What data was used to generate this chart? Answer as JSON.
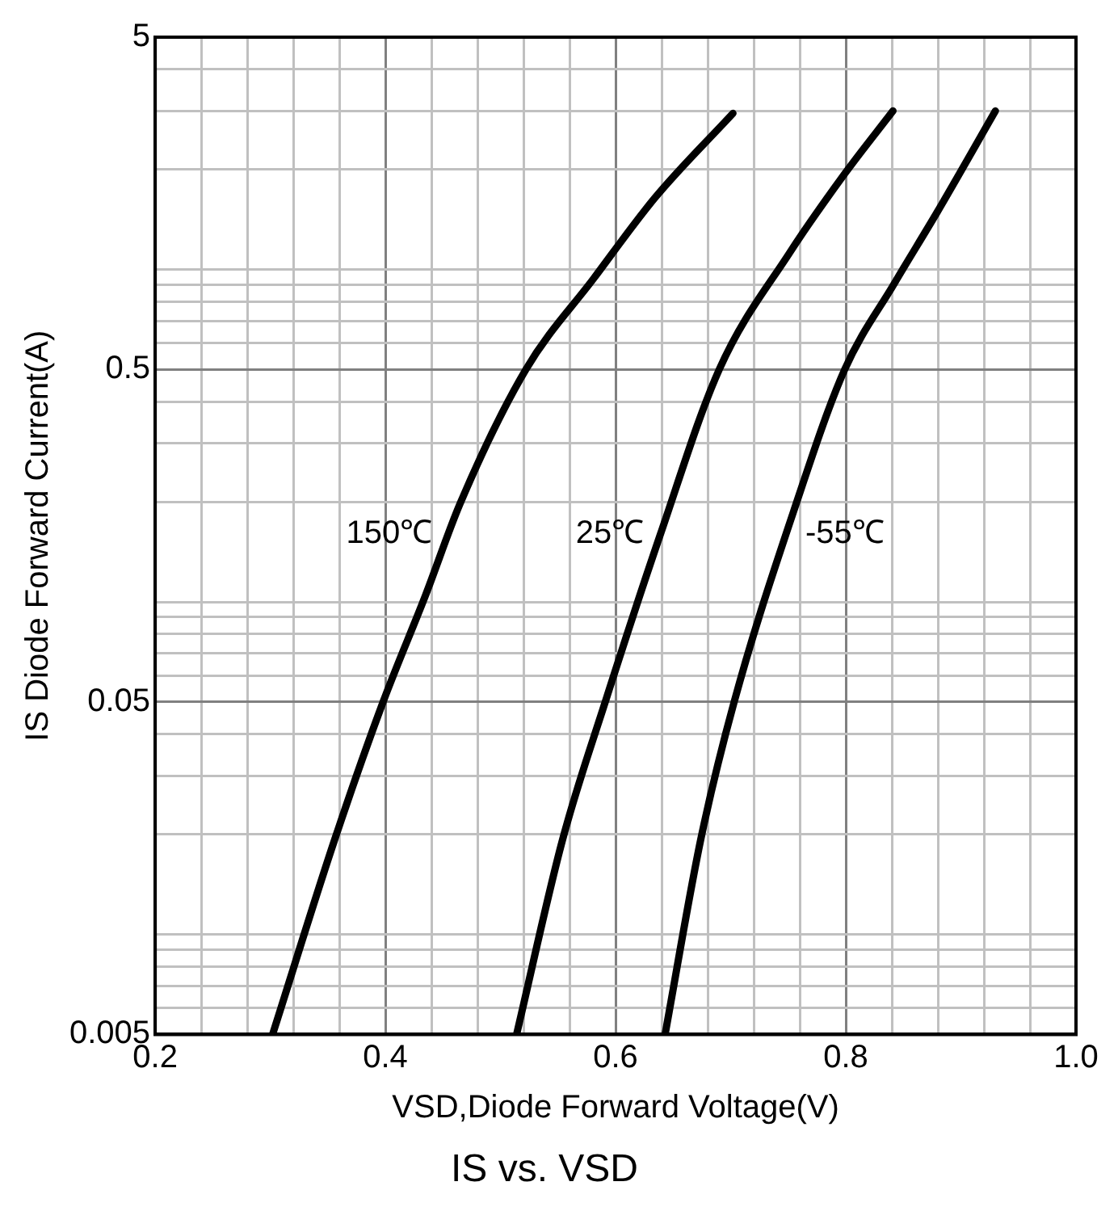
{
  "chart_data": {
    "type": "line",
    "title": "IS vs. VSD",
    "xlabel": "VSD,Diode Forward Voltage(V)",
    "ylabel": "IS Diode Forward Current(A)",
    "log": "y",
    "grid": true,
    "legend": false,
    "marker": "none",
    "line_style": "solid",
    "xlim": [
      0.2,
      1.0
    ],
    "xticks": [
      0.2,
      {
        "value": 0.24,
        "label": null
      },
      {
        "value": 0.28,
        "label": null
      },
      {
        "value": 0.32,
        "label": null
      },
      {
        "value": 0.36,
        "label": null
      },
      0.4,
      {
        "value": 0.44,
        "label": null
      },
      {
        "value": 0.48,
        "label": null
      },
      {
        "value": 0.52,
        "label": null
      },
      {
        "value": 0.56,
        "label": null
      },
      0.6,
      {
        "value": 0.64,
        "label": null
      },
      {
        "value": 0.68,
        "label": null
      },
      {
        "value": 0.72,
        "label": null
      },
      {
        "value": 0.76,
        "label": null
      },
      0.8,
      {
        "value": 0.84,
        "label": null
      },
      {
        "value": 0.88,
        "label": null
      },
      {
        "value": 0.92,
        "label": null
      },
      {
        "value": 0.96,
        "label": null
      },
      {
        "value": 1.0,
        "label": "1.0"
      }
    ],
    "ylim": [
      0.005,
      5
    ],
    "yticks": [
      0.005,
      {
        "value": 0.006,
        "label": null
      },
      {
        "value": 0.007,
        "label": null
      },
      {
        "value": 0.008,
        "label": null
      },
      {
        "value": 0.009,
        "label": null
      },
      {
        "value": 0.01,
        "label": null
      },
      {
        "value": 0.02,
        "label": null
      },
      {
        "value": 0.03,
        "label": null
      },
      {
        "value": 0.04,
        "label": null
      },
      0.05,
      {
        "value": 0.06,
        "label": null
      },
      {
        "value": 0.07,
        "label": null
      },
      {
        "value": 0.08,
        "label": null
      },
      {
        "value": 0.09,
        "label": null
      },
      {
        "value": 0.1,
        "label": null
      },
      {
        "value": 0.2,
        "label": null
      },
      {
        "value": 0.3,
        "label": null
      },
      {
        "value": 0.4,
        "label": null
      },
      0.5,
      {
        "value": 0.6,
        "label": null
      },
      {
        "value": 0.7,
        "label": null
      },
      {
        "value": 0.8,
        "label": null
      },
      {
        "value": 0.9,
        "label": null
      },
      {
        "value": 1,
        "label": null
      },
      {
        "value": 2,
        "label": null
      },
      {
        "value": 3,
        "label": null
      },
      {
        "value": 4,
        "label": null
      },
      5
    ],
    "series": [
      {
        "name": "150℃",
        "color": "#000000",
        "x": [
          0.302,
          0.356,
          0.398,
          0.435,
          0.465,
          0.522,
          0.581,
          0.634,
          0.702
        ],
        "values": [
          0.005,
          0.0193,
          0.05,
          0.105,
          0.198,
          0.5,
          0.94,
          1.64,
          2.95
        ]
      },
      {
        "name": "25℃",
        "color": "#000000",
        "x": [
          0.514,
          0.554,
          0.591,
          0.639,
          0.69,
          0.751,
          0.799,
          0.841
        ],
        "values": [
          0.005,
          0.0193,
          0.05,
          0.16,
          0.5,
          1.12,
          1.94,
          3.0
        ]
      },
      {
        "name": "-55℃",
        "color": "#000000",
        "x": [
          0.643,
          0.674,
          0.703,
          0.757,
          0.799,
          0.842,
          0.88,
          0.93
        ],
        "values": [
          0.005,
          0.0193,
          0.05,
          0.198,
          0.5,
          0.906,
          1.5,
          3.0
        ]
      }
    ]
  }
}
